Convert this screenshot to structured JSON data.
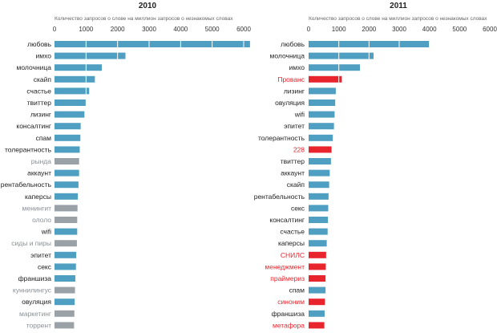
{
  "colors": {
    "common": "#4f9fc2",
    "dropped": "#9aa2a8",
    "new": "#e8242c",
    "label": "#222222",
    "label_dropped": "#8a9096",
    "label_new": "#e8242c",
    "grid": "#ffffff"
  },
  "chart_data": [
    {
      "type": "bar",
      "orientation": "horizontal",
      "title": "2010",
      "subtitle": "Количество запросов о слове на миллион запросов о незнакомых словах",
      "xlim": [
        0,
        6000
      ],
      "ticks": [
        0,
        1000,
        2000,
        3000,
        4000,
        5000,
        6000
      ],
      "categories": [
        "любовь",
        "имхо",
        "молочница",
        "скайп",
        "счастье",
        "твиттер",
        "лизинг",
        "консалтинг",
        "спам",
        "толерантность",
        "рында",
        "аккаунт",
        "рентабельность",
        "каперсы",
        "менингит",
        "ололо",
        "wifi",
        "сиды и пиры",
        "эпитет",
        "секс",
        "франшиза",
        "куннилингус",
        "овуляция",
        "маркетинг",
        "торрент"
      ],
      "values": [
        6200,
        2250,
        1500,
        1280,
        1100,
        1000,
        950,
        830,
        820,
        800,
        780,
        780,
        760,
        740,
        730,
        720,
        720,
        710,
        690,
        680,
        660,
        650,
        640,
        630,
        620
      ],
      "status": [
        "common",
        "common",
        "common",
        "common",
        "common",
        "common",
        "common",
        "common",
        "common",
        "common",
        "dropped",
        "common",
        "common",
        "common",
        "dropped",
        "dropped",
        "common",
        "dropped",
        "common",
        "common",
        "common",
        "dropped",
        "common",
        "dropped",
        "dropped"
      ]
    },
    {
      "type": "bar",
      "orientation": "horizontal",
      "title": "2011",
      "subtitle": "Количество запросов о слове на миллион запросов о незнакомых словах",
      "xlim": [
        0,
        6000
      ],
      "ticks": [
        0,
        1000,
        2000,
        3000,
        4000,
        5000,
        6000
      ],
      "categories": [
        "любовь",
        "молочница",
        "имхо",
        "Прованс",
        "лизинг",
        "овуляция",
        "wifi",
        "эпитет",
        "толерантность",
        "228",
        "твиттер",
        "аккаунт",
        "скайп",
        "рентабельность",
        "секс",
        "консалтинг",
        "счастье",
        "каперсы",
        "СНИЛС",
        "менеджмент",
        "праймериз",
        "спам",
        "синоним",
        "франшиза",
        "метафора"
      ],
      "values": [
        4000,
        2150,
        1700,
        1100,
        900,
        880,
        860,
        840,
        800,
        760,
        740,
        700,
        680,
        660,
        650,
        640,
        630,
        600,
        580,
        570,
        560,
        560,
        540,
        530,
        520
      ],
      "status": [
        "common",
        "common",
        "common",
        "new",
        "common",
        "common",
        "common",
        "common",
        "common",
        "new",
        "common",
        "common",
        "common",
        "common",
        "common",
        "common",
        "common",
        "common",
        "new",
        "new",
        "new",
        "common",
        "new",
        "common",
        "new"
      ]
    }
  ]
}
